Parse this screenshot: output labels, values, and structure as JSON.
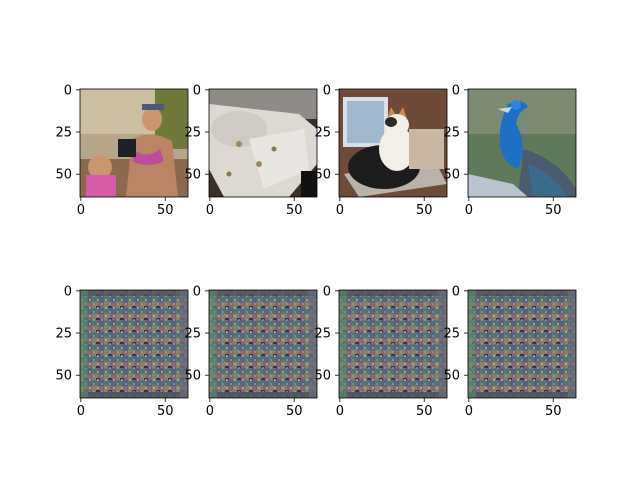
{
  "chart_data": {
    "type": "heatmap",
    "layout": "grid of image subplots",
    "rows": 2,
    "cols": 4,
    "xticks": [
      0,
      50
    ],
    "yticks": [
      0,
      25,
      50
    ],
    "xlim": [
      -0.5,
      63.5
    ],
    "ylim": [
      63.5,
      -0.5
    ],
    "panels": [
      {
        "row": 0,
        "col": 0,
        "image": "person-holding-camera-photo",
        "kind": "photo"
      },
      {
        "row": 0,
        "col": 1,
        "image": "plates-and-napkin-photo",
        "kind": "photo"
      },
      {
        "row": 0,
        "col": 2,
        "image": "cat-on-laptop-photo",
        "kind": "photo"
      },
      {
        "row": 0,
        "col": 3,
        "image": "peacock-photo",
        "kind": "photo"
      },
      {
        "row": 1,
        "col": 0,
        "image": "noisy-generated-pattern",
        "kind": "noise"
      },
      {
        "row": 1,
        "col": 1,
        "image": "noisy-generated-pattern",
        "kind": "noise"
      },
      {
        "row": 1,
        "col": 2,
        "image": "noisy-generated-pattern",
        "kind": "noise"
      },
      {
        "row": 1,
        "col": 3,
        "image": "noisy-generated-pattern",
        "kind": "noise"
      }
    ]
  },
  "colors": {
    "axes": "#000000",
    "background": "#ffffff"
  }
}
